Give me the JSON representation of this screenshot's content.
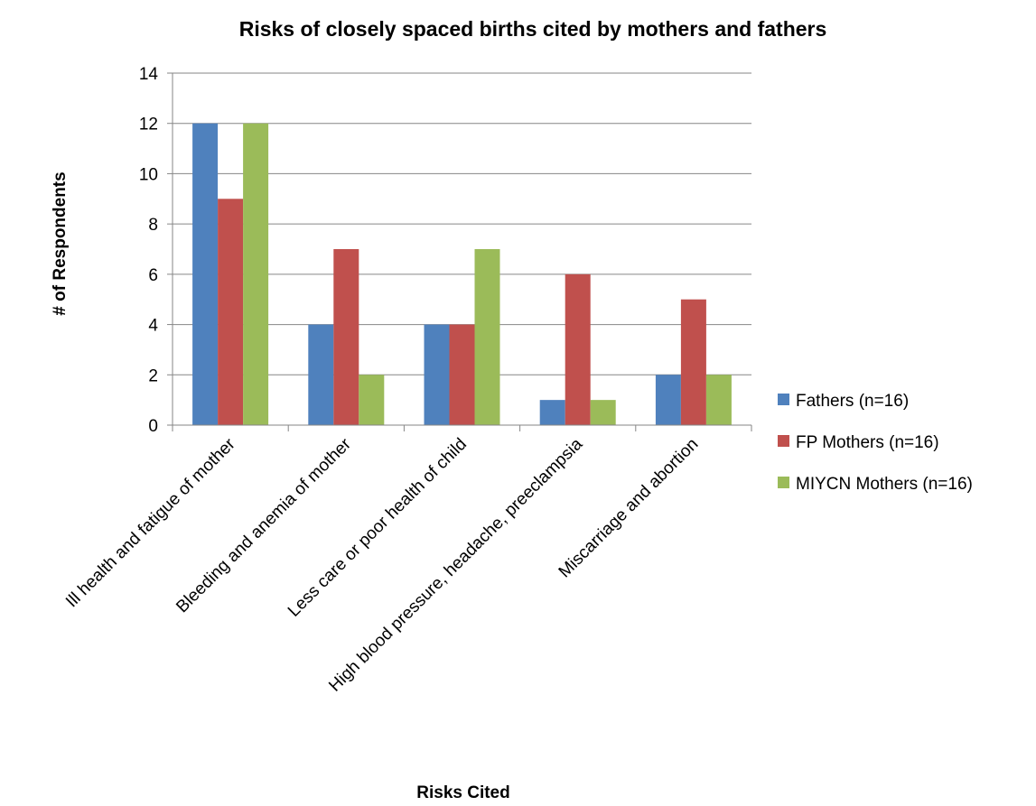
{
  "chart_data": {
    "type": "bar",
    "title": "Risks of closely spaced births cited by mothers and fathers",
    "xlabel": "Risks Cited",
    "ylabel": "# of Respondents",
    "ylim": [
      0,
      14
    ],
    "yticks": [
      "0",
      "2",
      "4",
      "6",
      "8",
      "10",
      "12",
      "14"
    ],
    "grid": true,
    "legend_position": "right",
    "categories": [
      "Ill health and fatigue of mother",
      "Bleeding and anemia of mother",
      "Less care or poor health of child",
      "High blood pressure, headache, preeclampsia",
      "Miscarriage and abortion"
    ],
    "series": [
      {
        "name": "Fathers  (n=16)",
        "color": "#4f81bd",
        "values": [
          12,
          4,
          4,
          1,
          2
        ]
      },
      {
        "name": "FP Mothers (n=16)",
        "color": "#c0504d",
        "values": [
          9,
          7,
          4,
          6,
          5
        ]
      },
      {
        "name": "MIYCN Mothers (n=16)",
        "color": "#9bbb59",
        "values": [
          12,
          2,
          7,
          1,
          2
        ]
      }
    ]
  }
}
